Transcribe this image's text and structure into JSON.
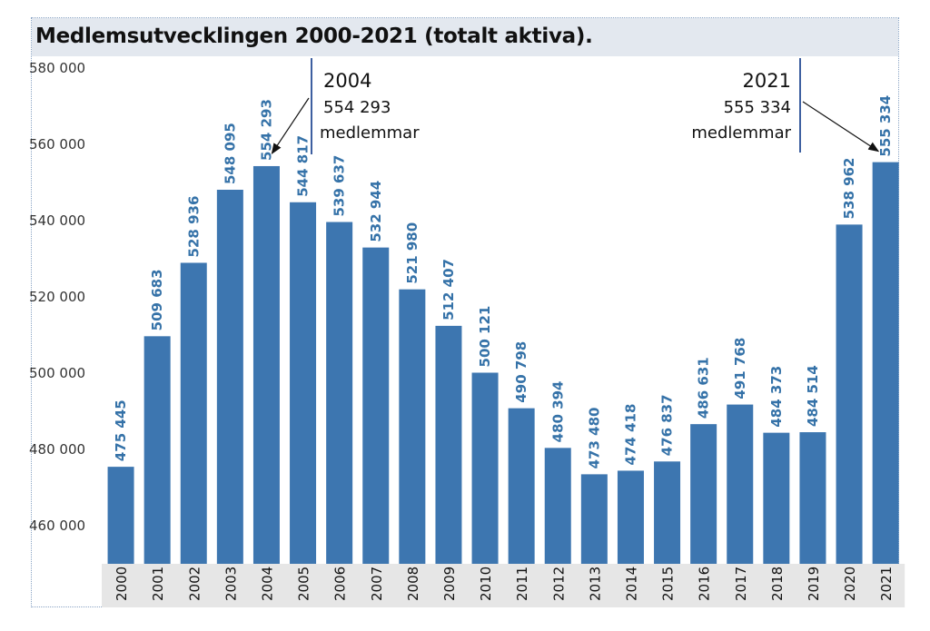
{
  "chart_data": {
    "type": "bar",
    "title": "Medlemsutvecklingen 2000-2021 (totalt aktiva).",
    "categories": [
      "2000",
      "2001",
      "2002",
      "2003",
      "2004",
      "2005",
      "2006",
      "2007",
      "2008",
      "2009",
      "2010",
      "2011",
      "2012",
      "2013",
      "2014",
      "2015",
      "2016",
      "2017",
      "2018",
      "2019",
      "2020",
      "2021"
    ],
    "values": [
      475445,
      509683,
      528936,
      548095,
      554293,
      544817,
      539637,
      532944,
      521980,
      512407,
      500121,
      490798,
      480394,
      473480,
      474418,
      476837,
      486631,
      491768,
      484373,
      484514,
      538962,
      555334
    ],
    "value_labels": [
      "475 445",
      "509 683",
      "528 936",
      "548 095",
      "554 293",
      "544 817",
      "539 637",
      "532 944",
      "521 980",
      "512 407",
      "500 121",
      "490 798",
      "480 394",
      "473 480",
      "474 418",
      "476 837",
      "486 631",
      "491 768",
      "484 373",
      "484 514",
      "538 962",
      "555 334"
    ],
    "ylim": [
      450000,
      580000
    ],
    "yticks": [
      460000,
      480000,
      500000,
      520000,
      540000,
      560000,
      580000
    ],
    "ytick_labels": [
      "460 000",
      "480 000",
      "500 000",
      "520 000",
      "540 000",
      "560 000",
      "580 000"
    ],
    "bar_color": "#3d76b0",
    "label_color": "#3572a8",
    "grid": false,
    "annotations": [
      {
        "category": "2004",
        "year": "2004",
        "value": "554 293",
        "unit": "medlemmar",
        "align": "left"
      },
      {
        "category": "2021",
        "year": "2021",
        "value": "555 334",
        "unit": "medlemmar",
        "align": "right"
      }
    ]
  }
}
